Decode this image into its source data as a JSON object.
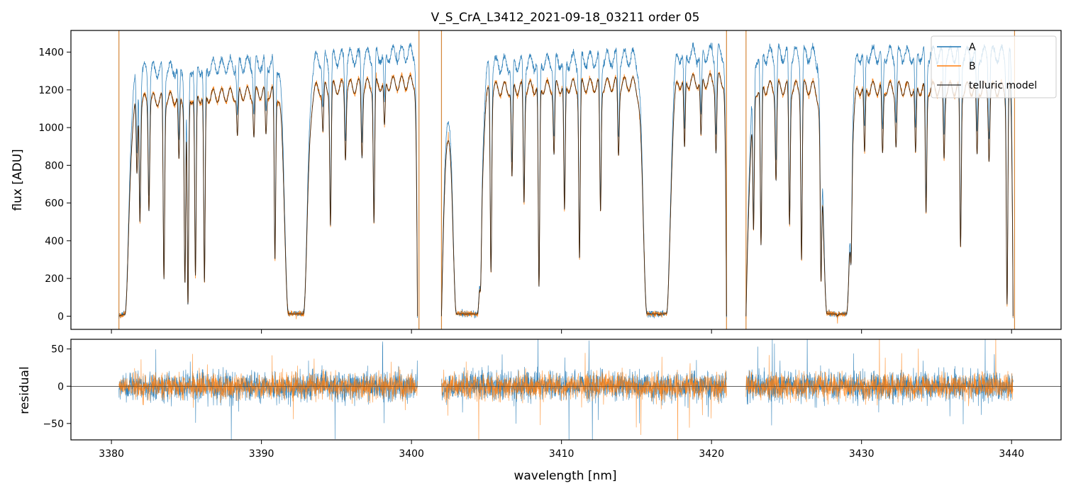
{
  "title": "V_S_CrA_L3412_2021-09-18_03211  order 05",
  "colors": {
    "A": "#1f77b4",
    "B": "#ff7f0e",
    "model": "#000000",
    "bad_columns": "#d4873a"
  },
  "chart_data": [
    {
      "type": "line",
      "panel": "top",
      "title": "V_S_CrA_L3412_2021-09-18_03211  order 05",
      "xlabel": "",
      "ylabel": "flux [ADU]",
      "xlim": [
        3377.3,
        3443.3
      ],
      "ylim": [
        -70,
        1515
      ],
      "xticks": [
        3380,
        3390,
        3400,
        3410,
        3420,
        3430,
        3440
      ],
      "yticks": [
        0,
        200,
        400,
        600,
        800,
        1000,
        1200,
        1400
      ],
      "ytick_labels": [
        "0",
        "200",
        "400",
        "600",
        "800",
        "1000",
        "1200",
        "1400"
      ],
      "legend": {
        "placement": "top-right",
        "entries": [
          "A",
          "B",
          "telluric model"
        ]
      },
      "segments": [
        {
          "x_range": [
            3380.5,
            3400.4
          ],
          "A_continuum": [
            1330,
            1440
          ],
          "B_continuum": [
            1170,
            1280
          ]
        },
        {
          "x_range": [
            3402.0,
            3421.0
          ],
          "A_continuum": [
            1360,
            1440
          ],
          "B_continuum": [
            1230,
            1290
          ]
        },
        {
          "x_range": [
            3422.3,
            3440.1
          ],
          "A_continuum": [
            1430,
            1430
          ],
          "B_continuum": [
            1250,
            1240
          ]
        }
      ],
      "absorption_lines": [
        {
          "x": 3381.7,
          "depth": 0.35
        },
        {
          "x": 3381.9,
          "depth": 0.55
        },
        {
          "x": 3382.5,
          "depth": 0.5
        },
        {
          "x": 3383.5,
          "depth": 0.83
        },
        {
          "x": 3384.5,
          "depth": 0.3
        },
        {
          "x": 3384.9,
          "depth": 0.85
        },
        {
          "x": 3385.1,
          "depth": 0.95
        },
        {
          "x": 3385.6,
          "depth": 0.82
        },
        {
          "x": 3386.2,
          "depth": 0.85
        },
        {
          "x": 3388.4,
          "depth": 0.2
        },
        {
          "x": 3389.5,
          "depth": 0.2
        },
        {
          "x": 3390.3,
          "depth": 0.2
        },
        {
          "x": 3390.9,
          "depth": 0.75
        },
        {
          "x": 3394.1,
          "depth": 0.2
        },
        {
          "x": 3394.6,
          "depth": 0.6
        },
        {
          "x": 3395.6,
          "depth": 0.3
        },
        {
          "x": 3396.7,
          "depth": 0.3
        },
        {
          "x": 3397.5,
          "depth": 0.6
        },
        {
          "x": 3398.2,
          "depth": 0.2
        },
        {
          "x": 3404.6,
          "depth": 0.6
        },
        {
          "x": 3405.3,
          "depth": 0.8
        },
        {
          "x": 3406.7,
          "depth": 0.4
        },
        {
          "x": 3407.5,
          "depth": 0.5
        },
        {
          "x": 3408.5,
          "depth": 0.88
        },
        {
          "x": 3409.5,
          "depth": 0.3
        },
        {
          "x": 3410.2,
          "depth": 0.55
        },
        {
          "x": 3411.2,
          "depth": 0.75
        },
        {
          "x": 3412.6,
          "depth": 0.55
        },
        {
          "x": 3413.8,
          "depth": 0.3
        },
        {
          "x": 3416.5,
          "depth": 0.5
        },
        {
          "x": 3418.2,
          "depth": 0.3
        },
        {
          "x": 3419.3,
          "depth": 0.25
        },
        {
          "x": 3420.3,
          "depth": 0.3
        },
        {
          "x": 3422.8,
          "depth": 0.6
        },
        {
          "x": 3423.3,
          "depth": 0.7
        },
        {
          "x": 3424.3,
          "depth": 0.4
        },
        {
          "x": 3425.2,
          "depth": 0.6
        },
        {
          "x": 3426.0,
          "depth": 0.75
        },
        {
          "x": 3427.3,
          "depth": 0.8
        },
        {
          "x": 3428.4,
          "depth": 0.9
        },
        {
          "x": 3429.3,
          "depth": 0.55
        },
        {
          "x": 3430.2,
          "depth": 0.3
        },
        {
          "x": 3431.4,
          "depth": 0.3
        },
        {
          "x": 3432.3,
          "depth": 0.25
        },
        {
          "x": 3433.6,
          "depth": 0.3
        },
        {
          "x": 3434.3,
          "depth": 0.55
        },
        {
          "x": 3435.5,
          "depth": 0.3
        },
        {
          "x": 3436.6,
          "depth": 0.7
        },
        {
          "x": 3437.7,
          "depth": 0.3
        },
        {
          "x": 3438.5,
          "depth": 0.3
        },
        {
          "x": 3439.7,
          "depth": 0.95
        }
      ],
      "saturated_bands": [
        {
          "x_range": [
            3380.5,
            3380.9
          ]
        },
        {
          "x_range": [
            3391.8,
            3392.8
          ]
        },
        {
          "x_range": [
            3403.0,
            3404.4
          ]
        },
        {
          "x_range": [
            3415.7,
            3417.0
          ]
        },
        {
          "x_range": [
            3427.7,
            3429.0
          ]
        }
      ],
      "bad_columns": [
        3380.5,
        3400.5,
        3402.0,
        3421.0,
        3422.3,
        3440.2
      ]
    },
    {
      "type": "line",
      "panel": "bottom",
      "xlabel": "wavelength [nm]",
      "ylabel": "residual",
      "xlim": [
        3377.3,
        3443.3
      ],
      "ylim": [
        -72,
        63
      ],
      "xticks": [
        3380,
        3390,
        3400,
        3410,
        3420,
        3430,
        3440
      ],
      "xtick_labels": [
        "3380",
        "3390",
        "3400",
        "3410",
        "3420",
        "3430",
        "3440"
      ],
      "yticks": [
        -50,
        0,
        50
      ],
      "ytick_labels": [
        "−50",
        "0",
        "50"
      ],
      "zero_line": 0,
      "series": [
        {
          "name": "A",
          "noise_amplitude": 25
        },
        {
          "name": "B",
          "noise_amplitude": 22
        }
      ]
    }
  ]
}
